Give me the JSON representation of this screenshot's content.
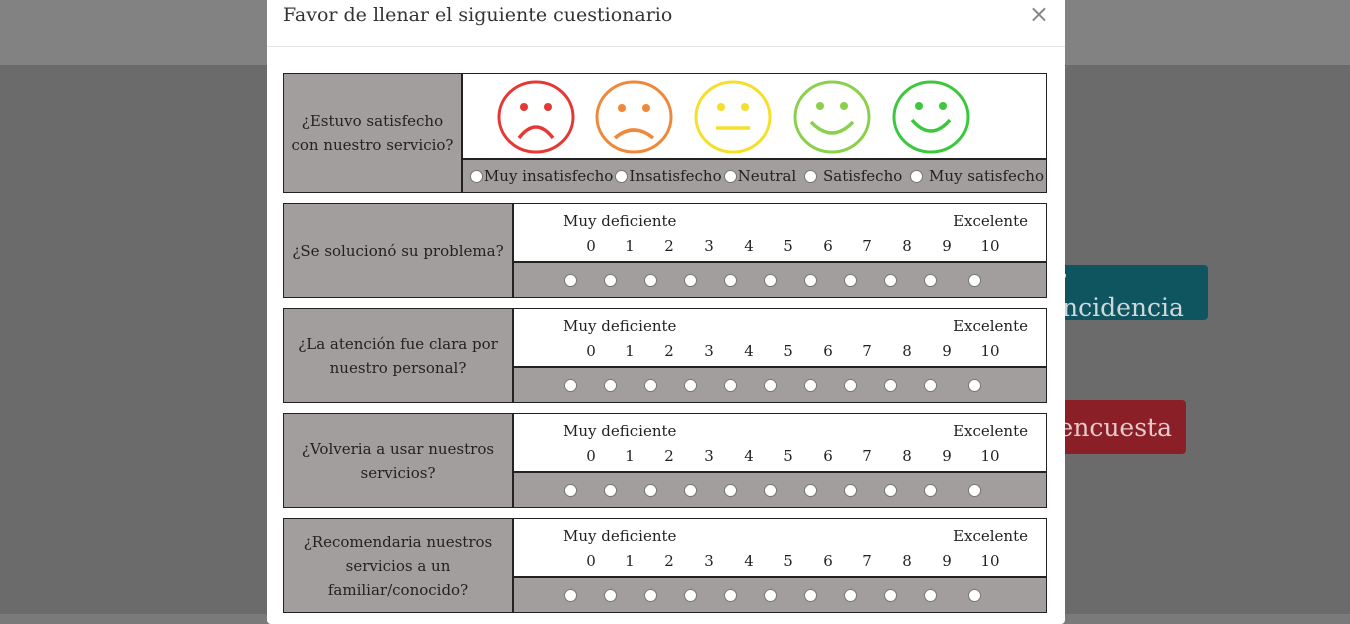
{
  "background": {
    "button_1_label": "r incidencia",
    "button_2_label": "encuesta"
  },
  "modal": {
    "title": "Favor de llenar el siguiente cuestionario",
    "close_symbol": "×"
  },
  "colors": {
    "label_bg": "#a29e9e",
    "face_very_unsatisfied": "#e53935",
    "face_unsatisfied": "#f0883a",
    "face_neutral": "#f5df2a",
    "face_satisfied": "#8bd04a",
    "face_very_satisfied": "#3cc83c"
  },
  "satisfaction": {
    "question": "¿Estuvo satisfecho con nuestro servicio?",
    "options": [
      "Muy insatisfecho",
      "Insatisfecho",
      "Neutral",
      "Satisfecho",
      "Muy satisfecho"
    ],
    "face_icons": [
      "very-sad-face-icon",
      "sad-face-icon",
      "neutral-face-icon",
      "happy-face-icon",
      "very-happy-face-icon"
    ]
  },
  "scale": {
    "low_label": "Muy deficiente",
    "high_label": "Excelente",
    "numbers": [
      "0",
      "1",
      "2",
      "3",
      "4",
      "5",
      "6",
      "7",
      "8",
      "9",
      "10"
    ]
  },
  "questions": [
    "¿Se solucionó su problema?",
    "¿La atención fue clara por nuestro personal?",
    "¿Volveria a usar nuestros servicios?",
    "¿Recomendaria nuestros servicios a un familiar/conocido?"
  ]
}
